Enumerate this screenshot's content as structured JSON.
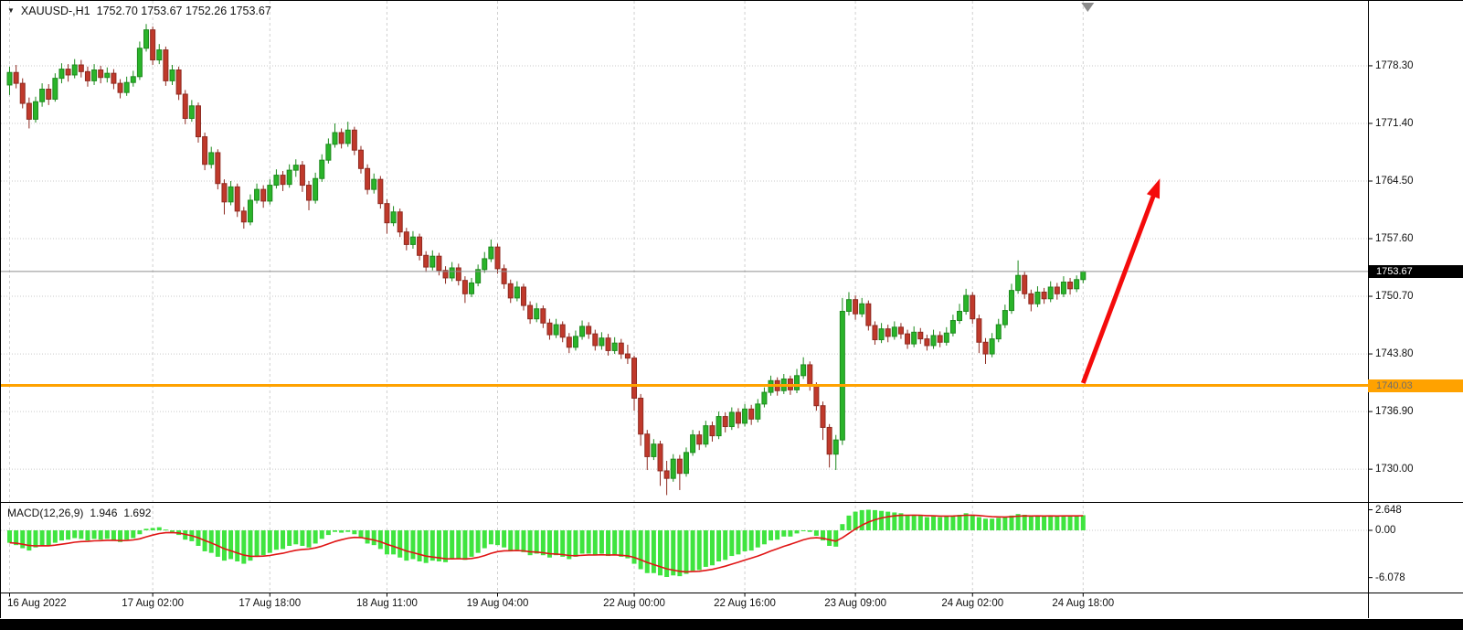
{
  "header": {
    "collapse_icon": "▼",
    "symbol_period": "XAUUSD-,H1",
    "ohlc_values": "1752.70 1753.67 1752.26 1753.67"
  },
  "macd": {
    "label": "MACD(12,26,9)",
    "main_value": "1.946",
    "signal_value": "1.692"
  },
  "price_axis": {
    "tick_labels": [
      "1778.30",
      "1771.40",
      "1764.50",
      "1757.60",
      "1750.70",
      "1743.80",
      "1736.90",
      "1730.00"
    ],
    "current_price_label": "1753.67",
    "hline_price_label": "1740.03"
  },
  "macd_axis": {
    "tick_labels": [
      "2.648",
      "0.00",
      "-6.078"
    ]
  },
  "colors": {
    "bull": "#2ab42a",
    "bull_border": "#1d8a1d",
    "bear": "#c0392b",
    "bear_border": "#8e2a20",
    "macd_histogram": "#3fe43f",
    "macd_signal": "#e01515",
    "hline": "#ffa200",
    "current_price_line": "#8f8f8f",
    "arrow": "#f40b0b",
    "grid": "#c9c9c9",
    "vgrid": "#d0d0d0",
    "current_tag_bg": "#000000",
    "current_tag_text": "#ffffff",
    "hline_tag_bg": "#ffa200",
    "hline_tag_text": "#6e6e6e",
    "axis_text": "#111111",
    "window_edge": "#000000",
    "shift_marker": "#8c8c8c"
  },
  "chart_data": {
    "type": "candlestick",
    "symbol": "XAUUSD-",
    "timeframe": "H1",
    "ohlc_current": {
      "open": 1752.7,
      "high": 1753.67,
      "low": 1752.26,
      "close": 1753.67
    },
    "price_view": {
      "top": 1785.3,
      "bottom": 1726.4
    },
    "price_ticks": [
      1778.3,
      1771.4,
      1764.5,
      1757.6,
      1750.7,
      1743.8,
      1736.9,
      1730.0
    ],
    "time_ticks": [
      {
        "label": "16 Aug 2022",
        "bar": 0
      },
      {
        "label": "17 Aug 02:00",
        "bar": 22
      },
      {
        "label": "17 Aug 18:00",
        "bar": 40
      },
      {
        "label": "18 Aug 11:00",
        "bar": 58
      },
      {
        "label": "19 Aug 04:00",
        "bar": 75
      },
      {
        "label": "22 Aug 00:00",
        "bar": 96
      },
      {
        "label": "22 Aug 16:00",
        "bar": 113
      },
      {
        "label": "23 Aug 09:00",
        "bar": 130
      },
      {
        "label": "24 Aug 02:00",
        "bar": 148
      },
      {
        "label": "24 Aug 18:00",
        "bar": 165
      }
    ],
    "current_price": 1753.67,
    "hline_price": 1740.03,
    "candles": [
      [
        1776.0,
        1778.2,
        1774.8,
        1777.5
      ],
      [
        1777.5,
        1778.4,
        1775.6,
        1776.2
      ],
      [
        1776.2,
        1776.8,
        1773.2,
        1773.8
      ],
      [
        1773.8,
        1774.5,
        1770.8,
        1771.9
      ],
      [
        1771.9,
        1774.6,
        1771.5,
        1774.0
      ],
      [
        1774.0,
        1776.2,
        1773.4,
        1775.5
      ],
      [
        1775.5,
        1776.1,
        1773.6,
        1774.3
      ],
      [
        1774.3,
        1777.4,
        1774.0,
        1776.8
      ],
      [
        1776.8,
        1778.6,
        1776.2,
        1777.9
      ],
      [
        1777.9,
        1778.5,
        1776.4,
        1777.2
      ],
      [
        1777.2,
        1779.1,
        1776.8,
        1778.4
      ],
      [
        1778.4,
        1779.0,
        1776.9,
        1777.6
      ],
      [
        1777.6,
        1778.2,
        1775.8,
        1776.5
      ],
      [
        1776.5,
        1778.5,
        1776.0,
        1777.8
      ],
      [
        1777.8,
        1778.3,
        1776.2,
        1776.9
      ],
      [
        1776.9,
        1778.1,
        1776.3,
        1777.4
      ],
      [
        1777.4,
        1777.9,
        1775.5,
        1776.2
      ],
      [
        1776.2,
        1776.7,
        1774.4,
        1775.1
      ],
      [
        1775.1,
        1777.0,
        1774.7,
        1776.3
      ],
      [
        1776.3,
        1777.7,
        1775.8,
        1777.0
      ],
      [
        1777.0,
        1781.2,
        1776.6,
        1780.4
      ],
      [
        1780.4,
        1783.3,
        1780.0,
        1782.6
      ],
      [
        1782.6,
        1783.0,
        1778.4,
        1779.0
      ],
      [
        1779.0,
        1780.9,
        1778.5,
        1780.2
      ],
      [
        1780.2,
        1780.6,
        1775.9,
        1776.5
      ],
      [
        1776.5,
        1778.4,
        1776.0,
        1777.8
      ],
      [
        1777.8,
        1778.2,
        1774.2,
        1774.9
      ],
      [
        1774.9,
        1775.4,
        1771.3,
        1772.0
      ],
      [
        1772.0,
        1774.2,
        1771.6,
        1773.5
      ],
      [
        1773.5,
        1773.9,
        1769.1,
        1769.8
      ],
      [
        1769.8,
        1770.3,
        1765.8,
        1766.5
      ],
      [
        1766.5,
        1768.6,
        1766.0,
        1767.9
      ],
      [
        1767.9,
        1768.3,
        1763.5,
        1764.2
      ],
      [
        1764.2,
        1764.7,
        1760.5,
        1762.0
      ],
      [
        1762.0,
        1764.5,
        1761.6,
        1763.8
      ],
      [
        1763.8,
        1764.2,
        1760.2,
        1760.9
      ],
      [
        1760.9,
        1761.4,
        1758.8,
        1759.6
      ],
      [
        1759.6,
        1762.9,
        1759.2,
        1762.2
      ],
      [
        1762.2,
        1764.2,
        1761.8,
        1763.5
      ],
      [
        1763.5,
        1764.0,
        1761.3,
        1762.1
      ],
      [
        1762.1,
        1764.7,
        1761.7,
        1764.0
      ],
      [
        1764.0,
        1765.9,
        1763.6,
        1765.2
      ],
      [
        1765.2,
        1765.7,
        1763.3,
        1764.1
      ],
      [
        1764.1,
        1766.5,
        1763.7,
        1765.8
      ],
      [
        1765.8,
        1767.1,
        1765.0,
        1766.4
      ],
      [
        1766.4,
        1766.9,
        1763.2,
        1764.0
      ],
      [
        1764.0,
        1764.5,
        1761.0,
        1762.2
      ],
      [
        1762.2,
        1765.5,
        1761.8,
        1764.8
      ],
      [
        1764.8,
        1767.7,
        1764.4,
        1767.0
      ],
      [
        1767.0,
        1769.6,
        1766.6,
        1768.9
      ],
      [
        1768.9,
        1771.4,
        1768.5,
        1770.3
      ],
      [
        1770.3,
        1770.8,
        1768.4,
        1769.0
      ],
      [
        1769.0,
        1771.6,
        1768.6,
        1770.6
      ],
      [
        1770.6,
        1771.0,
        1767.6,
        1768.2
      ],
      [
        1768.2,
        1768.7,
        1765.4,
        1766.0
      ],
      [
        1766.0,
        1766.5,
        1762.9,
        1763.5
      ],
      [
        1763.5,
        1765.4,
        1763.0,
        1764.7
      ],
      [
        1764.7,
        1765.1,
        1761.2,
        1761.8
      ],
      [
        1761.8,
        1762.3,
        1758.2,
        1759.5
      ],
      [
        1759.5,
        1761.5,
        1759.1,
        1760.8
      ],
      [
        1760.8,
        1761.2,
        1757.8,
        1758.4
      ],
      [
        1758.4,
        1758.9,
        1756.2,
        1756.9
      ],
      [
        1756.9,
        1758.5,
        1756.4,
        1757.8
      ],
      [
        1757.8,
        1758.2,
        1755.0,
        1755.6
      ],
      [
        1755.6,
        1756.1,
        1753.6,
        1754.2
      ],
      [
        1754.2,
        1756.2,
        1753.8,
        1755.5
      ],
      [
        1755.5,
        1755.9,
        1753.2,
        1753.8
      ],
      [
        1753.8,
        1754.3,
        1752.2,
        1752.9
      ],
      [
        1752.9,
        1754.8,
        1752.5,
        1754.1
      ],
      [
        1754.1,
        1754.6,
        1752.0,
        1752.6
      ],
      [
        1752.6,
        1753.1,
        1749.9,
        1751.0
      ],
      [
        1751.0,
        1752.9,
        1750.6,
        1752.3
      ],
      [
        1752.3,
        1754.5,
        1751.9,
        1753.9
      ],
      [
        1753.9,
        1756.0,
        1753.5,
        1755.2
      ],
      [
        1755.2,
        1757.5,
        1754.8,
        1756.6
      ],
      [
        1756.6,
        1757.0,
        1753.4,
        1754.0
      ],
      [
        1754.0,
        1754.5,
        1751.6,
        1752.2
      ],
      [
        1752.2,
        1752.7,
        1749.9,
        1750.5
      ],
      [
        1750.5,
        1752.5,
        1750.1,
        1751.8
      ],
      [
        1751.8,
        1752.2,
        1749.0,
        1749.6
      ],
      [
        1749.6,
        1750.1,
        1747.4,
        1748.0
      ],
      [
        1748.0,
        1749.9,
        1747.6,
        1749.2
      ],
      [
        1749.2,
        1749.6,
        1746.9,
        1747.5
      ],
      [
        1747.5,
        1748.0,
        1745.5,
        1746.1
      ],
      [
        1746.1,
        1748.0,
        1745.7,
        1747.3
      ],
      [
        1747.3,
        1747.7,
        1745.2,
        1745.8
      ],
      [
        1745.8,
        1746.3,
        1743.9,
        1744.6
      ],
      [
        1744.6,
        1746.6,
        1744.2,
        1745.9
      ],
      [
        1745.9,
        1747.8,
        1745.5,
        1747.1
      ],
      [
        1747.1,
        1747.6,
        1745.6,
        1746.2
      ],
      [
        1746.2,
        1746.7,
        1744.2,
        1744.8
      ],
      [
        1744.8,
        1746.4,
        1744.3,
        1745.7
      ],
      [
        1745.7,
        1746.2,
        1743.6,
        1744.2
      ],
      [
        1744.2,
        1745.8,
        1743.8,
        1745.1
      ],
      [
        1745.1,
        1745.6,
        1743.2,
        1743.8
      ],
      [
        1743.8,
        1744.9,
        1742.6,
        1743.3
      ],
      [
        1743.3,
        1743.6,
        1737.0,
        1738.5
      ],
      [
        1738.5,
        1739.0,
        1732.8,
        1734.2
      ],
      [
        1734.2,
        1734.7,
        1729.9,
        1731.5
      ],
      [
        1731.5,
        1733.6,
        1731.1,
        1733.0
      ],
      [
        1733.0,
        1733.4,
        1728.0,
        1729.8
      ],
      [
        1729.8,
        1731.0,
        1726.9,
        1728.9
      ],
      [
        1728.9,
        1731.8,
        1728.5,
        1731.2
      ],
      [
        1731.2,
        1731.7,
        1727.5,
        1729.5
      ],
      [
        1729.5,
        1732.6,
        1729.1,
        1732.0
      ],
      [
        1732.0,
        1734.7,
        1731.6,
        1734.1
      ],
      [
        1734.1,
        1734.6,
        1732.3,
        1733.0
      ],
      [
        1733.0,
        1735.8,
        1732.6,
        1735.2
      ],
      [
        1735.2,
        1735.7,
        1733.3,
        1734.0
      ],
      [
        1734.0,
        1736.9,
        1733.6,
        1736.3
      ],
      [
        1736.3,
        1736.8,
        1734.4,
        1735.1
      ],
      [
        1735.1,
        1737.4,
        1734.7,
        1736.8
      ],
      [
        1736.8,
        1737.3,
        1734.9,
        1735.5
      ],
      [
        1735.5,
        1737.8,
        1735.1,
        1737.2
      ],
      [
        1737.2,
        1737.7,
        1735.3,
        1736.0
      ],
      [
        1736.0,
        1738.4,
        1735.6,
        1737.8
      ],
      [
        1737.8,
        1739.8,
        1737.4,
        1739.2
      ],
      [
        1739.2,
        1741.2,
        1738.8,
        1740.6
      ],
      [
        1740.6,
        1741.0,
        1738.8,
        1739.4
      ],
      [
        1739.4,
        1741.4,
        1739.0,
        1740.8
      ],
      [
        1740.8,
        1741.2,
        1738.9,
        1739.5
      ],
      [
        1739.5,
        1742.0,
        1739.1,
        1741.2
      ],
      [
        1741.2,
        1743.4,
        1740.8,
        1742.5
      ],
      [
        1742.5,
        1742.9,
        1739.4,
        1740.0
      ],
      [
        1740.0,
        1740.4,
        1737.0,
        1737.6
      ],
      [
        1737.6,
        1738.1,
        1733.5,
        1735.0
      ],
      [
        1735.0,
        1735.4,
        1730.2,
        1731.8
      ],
      [
        1731.8,
        1734.1,
        1729.9,
        1733.5
      ],
      [
        1733.5,
        1750.5,
        1732.9,
        1748.9
      ],
      [
        1748.9,
        1751.2,
        1748.4,
        1750.3
      ],
      [
        1750.3,
        1750.8,
        1747.9,
        1748.6
      ],
      [
        1748.6,
        1750.5,
        1748.2,
        1749.8
      ],
      [
        1749.8,
        1750.2,
        1746.6,
        1747.2
      ],
      [
        1747.2,
        1747.7,
        1744.9,
        1745.5
      ],
      [
        1745.5,
        1747.5,
        1745.1,
        1746.8
      ],
      [
        1746.8,
        1747.3,
        1745.2,
        1745.9
      ],
      [
        1745.9,
        1747.7,
        1745.5,
        1747.0
      ],
      [
        1747.0,
        1747.5,
        1745.6,
        1746.2
      ],
      [
        1746.2,
        1746.7,
        1744.4,
        1745.0
      ],
      [
        1745.0,
        1747.1,
        1744.6,
        1746.4
      ],
      [
        1746.4,
        1746.9,
        1745.0,
        1745.6
      ],
      [
        1745.6,
        1746.1,
        1744.2,
        1744.8
      ],
      [
        1744.8,
        1746.7,
        1744.4,
        1746.0
      ],
      [
        1746.0,
        1746.5,
        1744.6,
        1745.2
      ],
      [
        1745.2,
        1747.0,
        1744.8,
        1746.3
      ],
      [
        1746.3,
        1748.5,
        1745.9,
        1747.8
      ],
      [
        1747.8,
        1749.8,
        1747.4,
        1748.9
      ],
      [
        1748.9,
        1751.6,
        1748.5,
        1750.8
      ],
      [
        1750.8,
        1751.2,
        1747.4,
        1748.0
      ],
      [
        1748.0,
        1748.5,
        1743.9,
        1745.2
      ],
      [
        1745.2,
        1745.7,
        1742.6,
        1743.8
      ],
      [
        1743.8,
        1746.3,
        1743.4,
        1745.6
      ],
      [
        1745.6,
        1748.0,
        1745.2,
        1747.3
      ],
      [
        1747.3,
        1749.7,
        1746.9,
        1749.0
      ],
      [
        1749.0,
        1752.2,
        1748.6,
        1751.4
      ],
      [
        1751.4,
        1755.0,
        1751.0,
        1753.2
      ],
      [
        1753.2,
        1753.6,
        1750.4,
        1751.0
      ],
      [
        1751.0,
        1751.5,
        1748.9,
        1749.8
      ],
      [
        1749.8,
        1751.9,
        1749.4,
        1751.2
      ],
      [
        1751.2,
        1751.7,
        1749.8,
        1750.4
      ],
      [
        1750.4,
        1752.5,
        1750.0,
        1751.8
      ],
      [
        1751.8,
        1752.3,
        1750.3,
        1751.0
      ],
      [
        1751.0,
        1753.1,
        1750.6,
        1752.4
      ],
      [
        1752.4,
        1752.9,
        1750.9,
        1751.6
      ],
      [
        1751.6,
        1753.2,
        1751.2,
        1752.7
      ],
      [
        1752.7,
        1753.67,
        1752.26,
        1753.67
      ]
    ],
    "indicator": {
      "name": "MACD",
      "params": [
        12,
        26,
        9
      ],
      "main_current": 1.946,
      "signal_current": 1.692,
      "axis_ticks": [
        2.648,
        0.0,
        -6.078
      ],
      "histogram": [
        -1.6,
        -1.9,
        -2.3,
        -2.6,
        -2.2,
        -1.9,
        -2.0,
        -1.6,
        -1.3,
        -1.2,
        -1.0,
        -1.1,
        -1.3,
        -1.1,
        -1.2,
        -1.1,
        -1.3,
        -1.5,
        -1.2,
        -1.0,
        -0.5,
        0.2,
        0.3,
        0.4,
        0.1,
        -0.2,
        -0.6,
        -1.2,
        -1.4,
        -2.0,
        -2.7,
        -2.9,
        -3.4,
        -3.9,
        -3.7,
        -4.0,
        -4.3,
        -3.9,
        -3.4,
        -3.2,
        -2.9,
        -2.5,
        -2.4,
        -2.0,
        -1.8,
        -2.0,
        -2.2,
        -1.7,
        -1.1,
        -0.6,
        -0.2,
        -0.3,
        -0.2,
        -0.5,
        -1.0,
        -1.7,
        -1.9,
        -2.4,
        -3.1,
        -3.1,
        -3.5,
        -3.9,
        -3.7,
        -4.0,
        -4.2,
        -3.9,
        -4.0,
        -4.1,
        -3.7,
        -3.6,
        -3.8,
        -3.4,
        -2.9,
        -2.3,
        -1.8,
        -1.9,
        -2.2,
        -2.6,
        -2.5,
        -2.8,
        -3.2,
        -3.0,
        -3.2,
        -3.5,
        -3.2,
        -3.4,
        -3.7,
        -3.4,
        -3.0,
        -3.0,
        -3.2,
        -3.0,
        -3.3,
        -3.1,
        -3.4,
        -3.6,
        -4.3,
        -5.0,
        -5.5,
        -5.5,
        -5.8,
        -6.0,
        -5.8,
        -5.9,
        -5.6,
        -5.2,
        -5.1,
        -4.7,
        -4.5,
        -4.0,
        -3.8,
        -3.3,
        -3.1,
        -2.7,
        -2.6,
        -2.2,
        -1.8,
        -1.3,
        -1.2,
        -0.8,
        -0.8,
        -0.4,
        0.0,
        -0.2,
        -0.7,
        -1.3,
        -2.0,
        -2.1,
        0.8,
        1.9,
        2.4,
        2.6,
        2.65,
        2.6,
        2.5,
        2.4,
        2.3,
        2.2,
        2.0,
        2.0,
        1.9,
        1.7,
        1.8,
        1.7,
        1.8,
        1.9,
        2.0,
        2.2,
        2.0,
        1.7,
        1.5,
        1.5,
        1.6,
        1.7,
        1.9,
        2.1,
        2.0,
        1.8,
        1.9,
        1.8,
        1.9,
        1.8,
        1.9,
        1.85,
        1.9,
        1.946
      ]
    },
    "annotations": [
      {
        "type": "arrow",
        "from": {
          "bar": 165,
          "price": 1740.3
        },
        "to": {
          "bar": 176.8,
          "price": 1764.8
        }
      }
    ]
  }
}
